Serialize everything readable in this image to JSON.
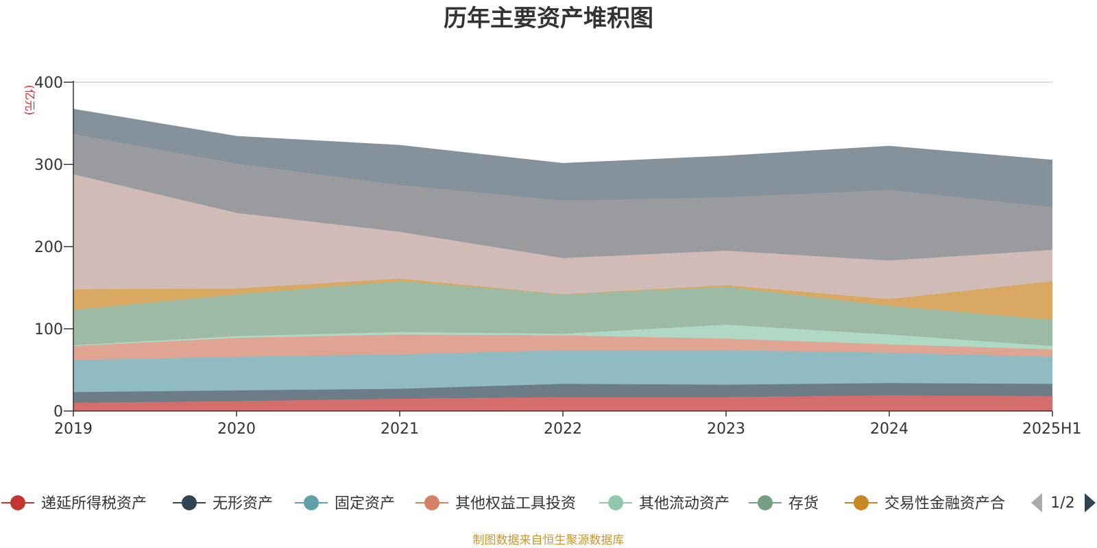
{
  "colors": {
    "grid": "#cccccc",
    "axis": "#333333",
    "unit": "#e6212b",
    "source": "#c8952e",
    "pager_active": "#2f4554",
    "pager_inactive": "#aaaaaa"
  },
  "legend": {
    "page": "1/2",
    "prev_icon": "triangle-left-icon",
    "next_icon": "triangle-right-icon"
  },
  "source_note": "制图数据来自恒生聚源数据库",
  "chart_data": {
    "type": "area",
    "stacked": true,
    "title": "历年主要资产堆积图",
    "ylabel": "(亿元)",
    "xlabel": "",
    "ylim": [
      0,
      400
    ],
    "yticks": [
      0,
      100,
      200,
      300,
      400
    ],
    "grid": true,
    "legend_position": "bottom",
    "categories": [
      "2019",
      "2020",
      "2021",
      "2022",
      "2023",
      "2024",
      "2025H1"
    ],
    "series": [
      {
        "name": "递延所得税资产",
        "color": "#c23531",
        "fill": "#d46e6c",
        "values": [
          10,
          12,
          15,
          17,
          17,
          19,
          18
        ]
      },
      {
        "name": "无形资产",
        "color": "#2f4554",
        "fill": "#6d7d88",
        "values": [
          13,
          13,
          12,
          16,
          15,
          15,
          15
        ]
      },
      {
        "name": "固定资产",
        "color": "#61a0a8",
        "fill": "#90bbc2",
        "values": [
          39,
          41,
          42,
          41,
          42,
          37,
          33
        ]
      },
      {
        "name": "其他权益工具投资",
        "color": "#d48265",
        "fill": "#e0a592",
        "values": [
          17,
          23,
          24,
          18,
          14,
          10,
          9
        ]
      },
      {
        "name": "其他流动资产",
        "color": "#91c7ae",
        "fill": "#afd8c5",
        "values": [
          1,
          2,
          3,
          2,
          17,
          12,
          4
        ]
      },
      {
        "name": "存货",
        "color": "#749f83",
        "fill": "#9dbaa5",
        "values": [
          43,
          51,
          62,
          48,
          46,
          35,
          32
        ]
      },
      {
        "name": "交易性金融资产合",
        "color": "#ca8622",
        "fill": "#d9a964",
        "values": [
          25,
          7,
          3,
          0,
          2,
          8,
          47
        ]
      },
      {
        "name": "",
        "color": "#bda29a",
        "fill": "#d0bbb6",
        "values": [
          140,
          92,
          57,
          44,
          42,
          47,
          38
        ]
      },
      {
        "name": "",
        "color": "#6e7074",
        "fill": "#9a9b9f",
        "values": [
          49,
          60,
          57,
          70,
          65,
          86,
          52
        ]
      },
      {
        "name": "",
        "color": "#546570",
        "fill": "#85929b",
        "values": [
          30,
          33,
          48,
          45,
          50,
          53,
          57
        ]
      }
    ]
  }
}
